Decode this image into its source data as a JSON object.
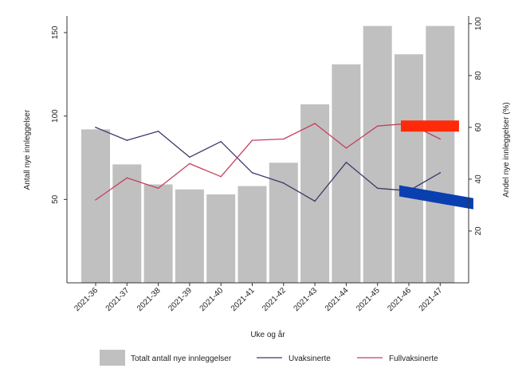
{
  "chart_data": {
    "type": "bar",
    "title": "",
    "xlabel": "Uke og år",
    "ylabel_left": "Antall nye innleggelser",
    "ylabel_right": "Andel nye innleggelser (%)",
    "categories": [
      "2021-36",
      "2021-37",
      "2021-38",
      "2021-39",
      "2021-40",
      "2021-41",
      "2021-42",
      "2021-43",
      "2021-44",
      "2021-45",
      "2021-46",
      "2021-47"
    ],
    "left_axis": {
      "min": 0,
      "max": 160,
      "ticks": [
        50,
        100,
        150
      ]
    },
    "right_axis": {
      "min": 0,
      "max": 103,
      "ticks": [
        20,
        40,
        60,
        80,
        100
      ]
    },
    "bars": {
      "name": "Totalt antall nye innleggelser",
      "axis": "left",
      "color": "#c0c0c0",
      "values": [
        92,
        71,
        59,
        56,
        53,
        58,
        72,
        107,
        131,
        154,
        137,
        154
      ]
    },
    "series": [
      {
        "name": "Uvaksinerte",
        "axis": "right",
        "color": "#3c3a6a",
        "values": [
          60,
          55,
          58.5,
          48.5,
          54.5,
          42.5,
          38.5,
          31.5,
          46.5,
          36.5,
          35.5,
          42.5
        ]
      },
      {
        "name": "Fullvaksinerte",
        "axis": "right",
        "color": "#c3415e",
        "values": [
          32,
          40.5,
          36.5,
          46,
          41,
          55,
          55.5,
          61.5,
          52,
          60.5,
          61.5,
          55.5
        ]
      }
    ],
    "annotations": [
      {
        "shape": "bar-marker",
        "color": "#ff2a0a",
        "x_from": "2021-46",
        "x_to": "2021-47",
        "y_right": 60.5
      },
      {
        "shape": "bar-marker",
        "color": "#0a3fb0",
        "x_from": "2021-46",
        "x_to": "2021-47",
        "y_right_from": 35.5,
        "y_right_to": 30.5
      }
    ],
    "grid": false,
    "legend_position": "bottom"
  }
}
